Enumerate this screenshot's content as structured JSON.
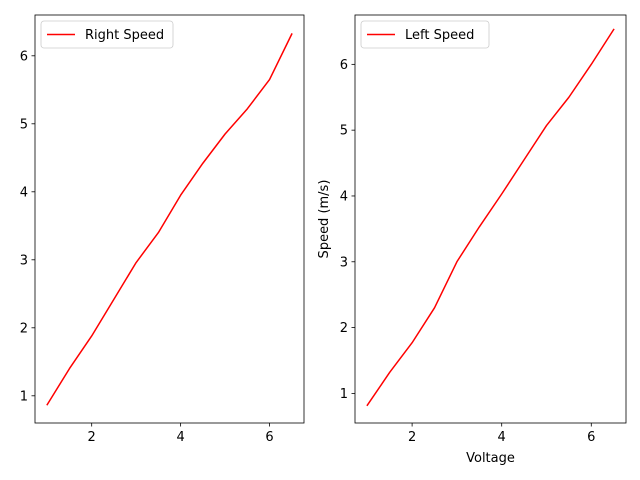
{
  "chart_data": [
    {
      "type": "line",
      "title": "",
      "xlabel": "",
      "ylabel": "",
      "xlim": [
        0.725,
        6.775
      ],
      "ylim": [
        0.6,
        6.6
      ],
      "xticks": [
        2,
        4,
        6
      ],
      "yticks": [
        1,
        2,
        3,
        4,
        5,
        6
      ],
      "xtick_labels": [
        "2",
        "4",
        "6"
      ],
      "ytick_labels": [
        "1",
        "2",
        "3",
        "4",
        "5",
        "6"
      ],
      "legend": "upper left",
      "grid": false,
      "series": [
        {
          "name": "Right Speed",
          "color": "#ff0000",
          "x": [
            1.0,
            1.5,
            2.0,
            2.5,
            3.0,
            3.5,
            4.0,
            4.5,
            5.0,
            5.5,
            6.0,
            6.5
          ],
          "y": [
            0.87,
            1.4,
            1.88,
            2.42,
            2.96,
            3.4,
            3.95,
            4.42,
            4.85,
            5.22,
            5.65,
            6.32
          ]
        }
      ]
    },
    {
      "type": "line",
      "title": "",
      "xlabel": "Voltage",
      "ylabel": "Speed (m/s)",
      "xlim": [
        0.725,
        6.775
      ],
      "ylim": [
        0.55,
        6.75
      ],
      "xticks": [
        2,
        4,
        6
      ],
      "yticks": [
        1,
        2,
        3,
        4,
        5,
        6
      ],
      "xtick_labels": [
        "2",
        "4",
        "6"
      ],
      "ytick_labels": [
        "1",
        "2",
        "3",
        "4",
        "5",
        "6"
      ],
      "legend": "upper left",
      "grid": false,
      "series": [
        {
          "name": "Left Speed",
          "color": "#ff0000",
          "x": [
            1.0,
            1.5,
            2.0,
            2.5,
            3.0,
            3.5,
            4.0,
            4.5,
            5.0,
            5.5,
            6.0,
            6.5
          ],
          "y": [
            0.82,
            1.32,
            1.77,
            2.3,
            3.0,
            3.53,
            4.03,
            4.55,
            5.07,
            5.5,
            6.0,
            6.53
          ]
        }
      ]
    }
  ]
}
